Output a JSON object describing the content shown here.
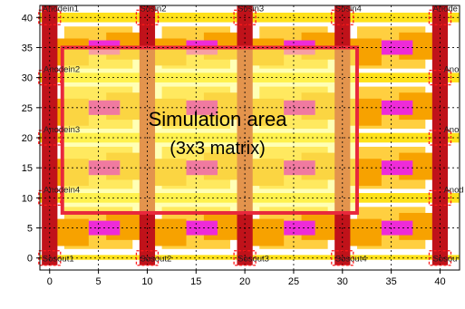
{
  "annotation": {
    "line1": "Simulation area",
    "line2": "(3x3 matrix)"
  },
  "axes": {
    "x_ticks": [
      "0",
      "5",
      "10",
      "15",
      "20",
      "25",
      "30",
      "35",
      "40"
    ],
    "y_ticks": [
      "0",
      "5",
      "10",
      "15",
      "20",
      "25",
      "30",
      "35",
      "40"
    ],
    "x_range": [
      -1,
      42
    ],
    "y_range": [
      -2,
      42
    ],
    "grid": true
  },
  "top_labels": [
    {
      "text": "Anodein1",
      "x": 0
    },
    {
      "text": "Sosin2",
      "x": 10
    },
    {
      "text": "Sosin3",
      "x": 20
    },
    {
      "text": "Sosin4",
      "x": 30
    },
    {
      "text": "Anode",
      "x": 40
    }
  ],
  "row_labels": [
    {
      "text": "Anodein2",
      "y": 31.5,
      "x": -1
    },
    {
      "text": "Ano",
      "y": 31.5,
      "x": 40
    },
    {
      "text": "Anodein3",
      "y": 21.5,
      "x": -1
    },
    {
      "text": "Ano",
      "y": 21.5,
      "x": 40
    },
    {
      "text": "Anodein4",
      "y": 11.5,
      "x": -1
    },
    {
      "text": "Anod",
      "y": 11.5,
      "x": 40
    }
  ],
  "bottom_labels": [
    {
      "text": "Sosout1",
      "x": 0
    },
    {
      "text": "Sosout2",
      "x": 10
    },
    {
      "text": "Sosout3",
      "x": 20
    },
    {
      "text": "Sosout4",
      "x": 30
    },
    {
      "text": "Sosou",
      "x": 40
    }
  ],
  "layout_grid": {
    "rails_x": [
      0,
      10,
      20,
      30,
      40
    ],
    "rows_y": [
      40,
      30,
      20,
      10
    ],
    "cell_columns_x": [
      5,
      15,
      25,
      35
    ],
    "magenta_rows_y": [
      35,
      25,
      15,
      5
    ]
  },
  "simulation_area": {
    "x_range": [
      1.3,
      31.5
    ],
    "y_range": [
      7.5,
      35
    ]
  },
  "colors": {
    "rail": "#c0121a",
    "wire": "#ffe11a",
    "cell_dark": "#f7a200",
    "cell_light": "#ffcf40",
    "pad": "#ee2bd8",
    "pad_soft": "#f07aa0",
    "sim_fill": "#ffff78",
    "sim_border": "#e8283c",
    "terminal": "#ff1a1a",
    "grid": "#000000"
  }
}
